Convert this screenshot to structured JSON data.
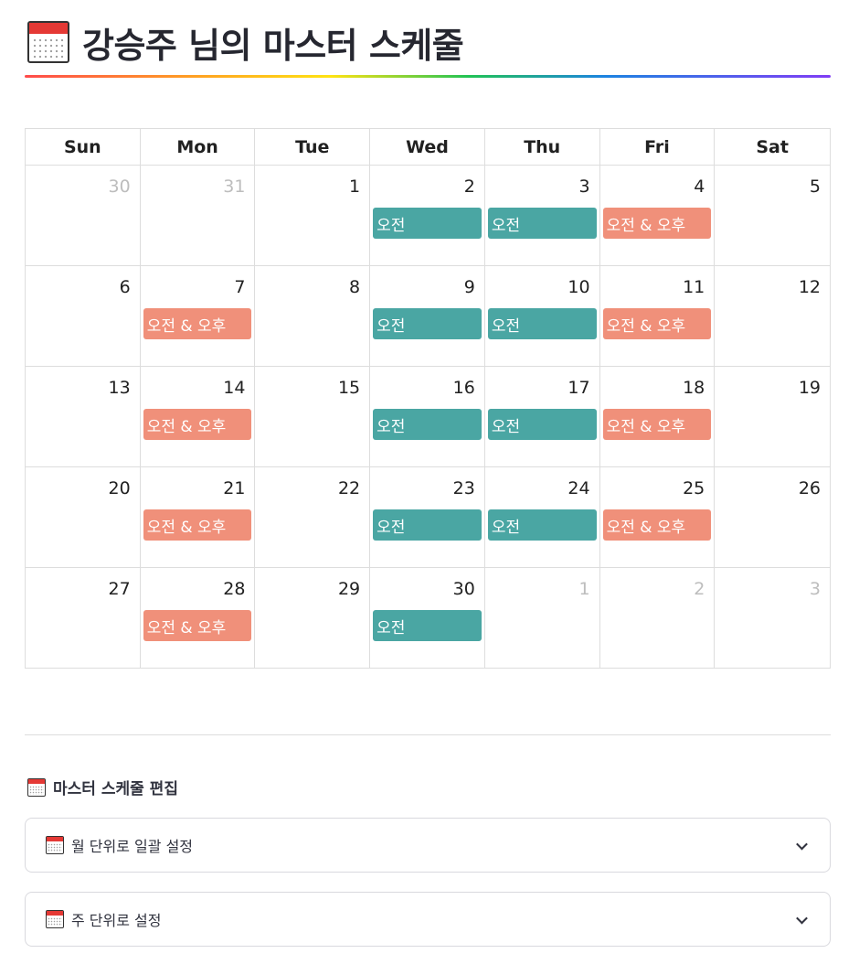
{
  "title": "강승주 님의 마스터 스케줄",
  "calendar": {
    "weekdays": [
      "Sun",
      "Mon",
      "Tue",
      "Wed",
      "Thu",
      "Fri",
      "Sat"
    ],
    "weeks": [
      [
        {
          "day": "30",
          "other": true
        },
        {
          "day": "31",
          "other": true
        },
        {
          "day": "1"
        },
        {
          "day": "2",
          "event": "오전",
          "kind": "am"
        },
        {
          "day": "3",
          "event": "오전",
          "kind": "am"
        },
        {
          "day": "4",
          "event": "오전 & 오후",
          "kind": "ampm"
        },
        {
          "day": "5"
        }
      ],
      [
        {
          "day": "6"
        },
        {
          "day": "7",
          "event": "오전 & 오후",
          "kind": "ampm"
        },
        {
          "day": "8"
        },
        {
          "day": "9",
          "event": "오전",
          "kind": "am"
        },
        {
          "day": "10",
          "event": "오전",
          "kind": "am"
        },
        {
          "day": "11",
          "event": "오전 & 오후",
          "kind": "ampm"
        },
        {
          "day": "12"
        }
      ],
      [
        {
          "day": "13"
        },
        {
          "day": "14",
          "event": "오전 & 오후",
          "kind": "ampm"
        },
        {
          "day": "15"
        },
        {
          "day": "16",
          "event": "오전",
          "kind": "am"
        },
        {
          "day": "17",
          "event": "오전",
          "kind": "am"
        },
        {
          "day": "18",
          "event": "오전 & 오후",
          "kind": "ampm"
        },
        {
          "day": "19"
        }
      ],
      [
        {
          "day": "20"
        },
        {
          "day": "21",
          "event": "오전 & 오후",
          "kind": "ampm"
        },
        {
          "day": "22"
        },
        {
          "day": "23",
          "event": "오전",
          "kind": "am"
        },
        {
          "day": "24",
          "event": "오전",
          "kind": "am"
        },
        {
          "day": "25",
          "event": "오전 & 오후",
          "kind": "ampm"
        },
        {
          "day": "26"
        }
      ],
      [
        {
          "day": "27"
        },
        {
          "day": "28",
          "event": "오전 & 오후",
          "kind": "ampm"
        },
        {
          "day": "29"
        },
        {
          "day": "30",
          "event": "오전",
          "kind": "am"
        },
        {
          "day": "1",
          "other": true
        },
        {
          "day": "2",
          "other": true
        },
        {
          "day": "3",
          "other": true
        }
      ]
    ]
  },
  "edit": {
    "header": "마스터 스케줄 편집",
    "expanders": [
      {
        "label": "월 단위로 일괄 설정"
      },
      {
        "label": "주 단위로 설정"
      }
    ]
  },
  "colors": {
    "am_event": "#4aa6a3",
    "ampm_event": "#f0907a",
    "icon_red": "#e53935"
  },
  "icons": {
    "title": "calendar-icon",
    "section": "calendar-icon",
    "expander": "chevron-down-icon"
  }
}
